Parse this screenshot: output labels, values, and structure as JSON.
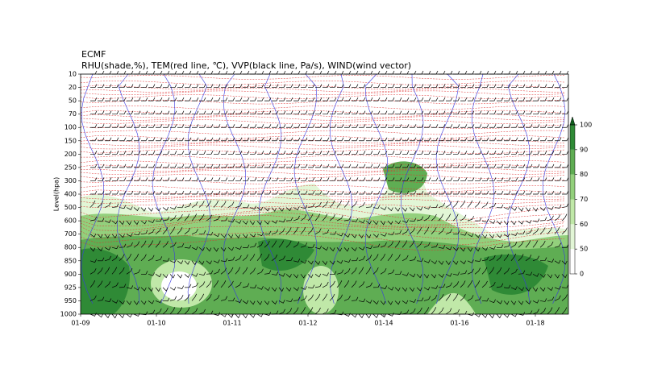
{
  "chart_data": {
    "type": "cross-section",
    "title": "ECMF",
    "subtitle": "RHU(shade,%), TEM(red line, ℃), VVP(black line, Pa/s), WIND(wind vector)",
    "ylabel": "Level(hpa)",
    "levels": [
      10,
      20,
      50,
      70,
      100,
      150,
      200,
      250,
      300,
      400,
      500,
      600,
      700,
      800,
      850,
      900,
      925,
      950,
      1000
    ],
    "categories": [
      "01-09",
      "01-10",
      "01-11",
      "01-12",
      "01-14",
      "01-16",
      "01-18"
    ],
    "colorbar_ticks": [
      0,
      50,
      60,
      70,
      80,
      90,
      100
    ],
    "colorbar_colors": [
      "#ffffff",
      "#e2f6d6",
      "#c0e8a8",
      "#93d07c",
      "#5fad53",
      "#2f8a36",
      "#0e5e1c"
    ]
  }
}
